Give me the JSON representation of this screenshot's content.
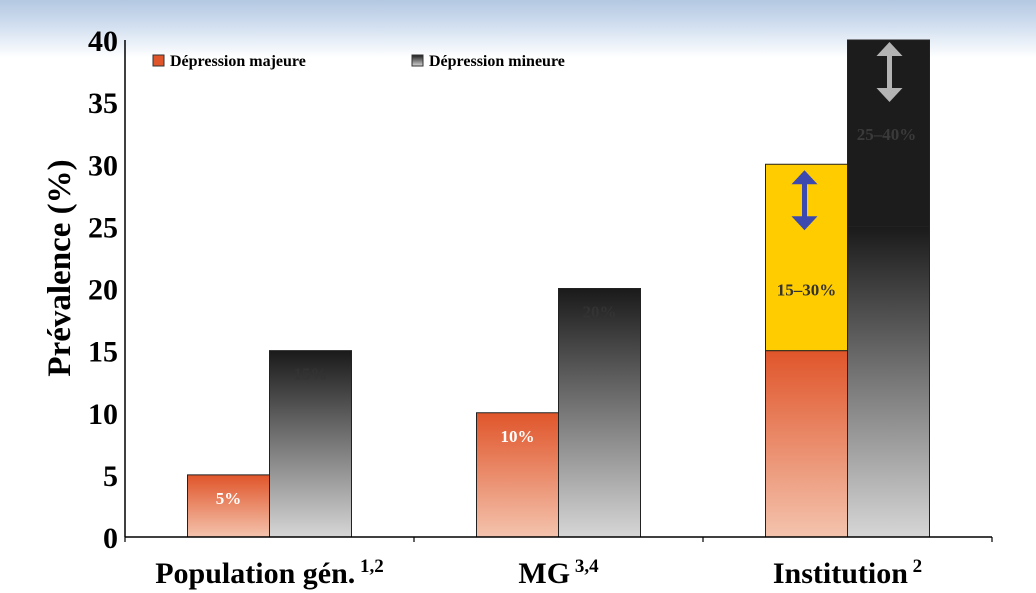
{
  "chart_data": {
    "type": "bar",
    "stacked_last_category": true,
    "ylabel": "Prévalence (%)",
    "ylim": [
      0,
      40
    ],
    "yticks": [
      "0",
      "5",
      "10",
      "15",
      "20",
      "25",
      "30",
      "35",
      "40"
    ],
    "categories": [
      {
        "name": "Population gén.",
        "sup": "1,2"
      },
      {
        "name": "MG",
        "sup": "3,4"
      },
      {
        "name": "Institution",
        "sup": "2"
      }
    ],
    "series": [
      {
        "name": "Dépression majeure",
        "color": "#e0552a",
        "values": [
          5,
          10,
          15
        ],
        "labels": [
          "5%",
          "10%",
          ""
        ],
        "range_extension": {
          "category": "Institution",
          "to": 30,
          "color": "#ffcc00",
          "label": "15–30%",
          "arrow_color": "#3c4ab0"
        }
      },
      {
        "name": "Dépression mineure",
        "color": "#1a1a1a",
        "values": [
          15,
          20,
          25
        ],
        "labels": [
          "15%",
          "20%",
          ""
        ],
        "range_extension": {
          "category": "Institution",
          "to": 40,
          "color": "#1c1c1c",
          "label": "25–40%",
          "arrow_color": "#b4b4b4"
        }
      }
    ],
    "legend": {
      "position": "top-left",
      "entries": [
        "Dépression majeure",
        "Dépression mineure"
      ]
    },
    "grid": false
  }
}
